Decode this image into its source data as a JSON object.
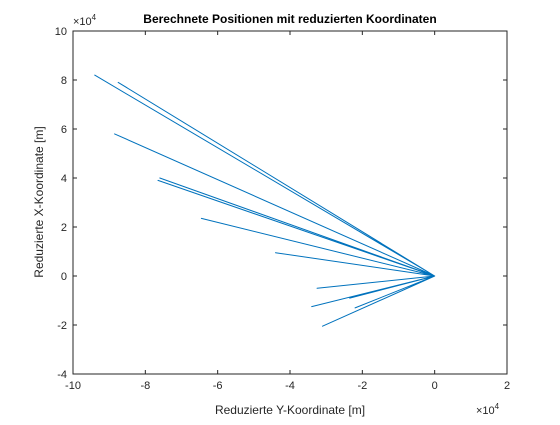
{
  "chart_data": {
    "type": "line",
    "title": "Berechnete Positionen mit reduzierten Koordinaten",
    "xlabel": "Reduzierte Y-Koordinate [m]",
    "ylabel": "Reduzierte X-Koordinate [m]",
    "x_exponent": {
      "base": "×10",
      "power": "4"
    },
    "y_exponent": {
      "base": "×10",
      "power": "4"
    },
    "xlim": [
      -100000,
      20000
    ],
    "ylim": [
      -40000,
      100000
    ],
    "xticks": [
      -100000,
      -80000,
      -60000,
      -40000,
      -20000,
      0,
      20000
    ],
    "yticks": [
      -40000,
      -20000,
      0,
      20000,
      40000,
      60000,
      80000,
      100000
    ],
    "xtick_labels": [
      "-10",
      "-8",
      "-6",
      "-4",
      "-2",
      "0",
      "2"
    ],
    "ytick_labels": [
      "-4",
      "-2",
      "0",
      "2",
      "4",
      "6",
      "8",
      "10"
    ],
    "grid": false,
    "color": "#0072BD",
    "series": [
      {
        "x": [
          0,
          -94000,
          0,
          -87500,
          0,
          -88500,
          0,
          -76000,
          0,
          -76500,
          0,
          -64500,
          0,
          -44000,
          0,
          -32500,
          0,
          -34000,
          0,
          -23500,
          0,
          -31000,
          0,
          -22000,
          0
        ],
        "y": [
          0,
          82000,
          0,
          79000,
          0,
          58000,
          0,
          40000,
          0,
          39000,
          0,
          23500,
          0,
          9500,
          0,
          -5000,
          0,
          -12500,
          0,
          -9000,
          0,
          -20500,
          0,
          -13000,
          0
        ]
      }
    ]
  }
}
